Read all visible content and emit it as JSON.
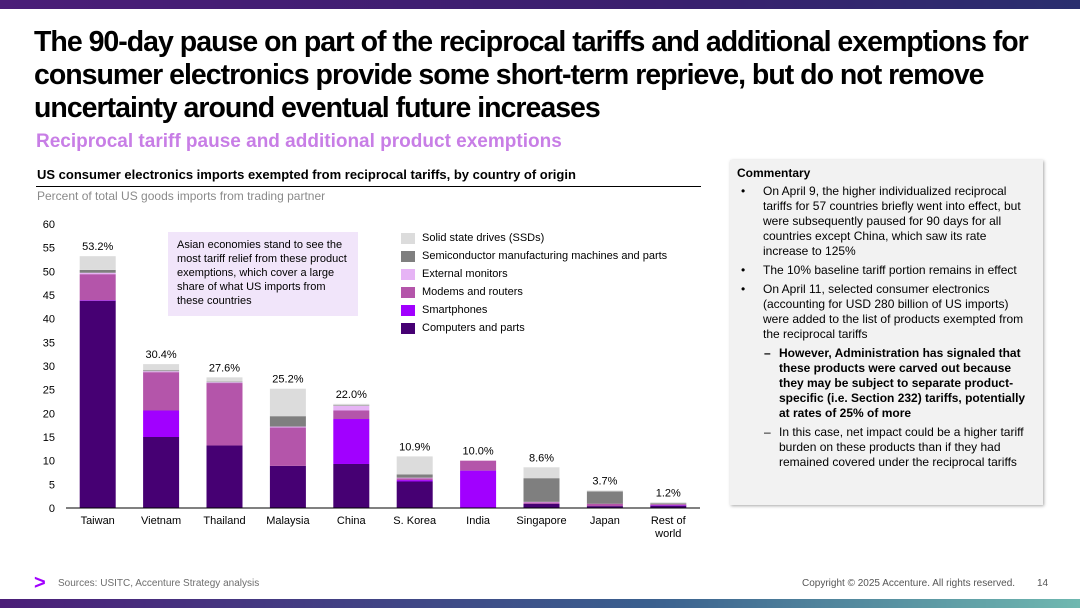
{
  "title": "The 90-day pause on part of the reciprocal tariffs and additional exemptions for consumer electronics provide some short-term reprieve, but  do not remove uncertainty around eventual future increases",
  "subtitle": "Reciprocal tariff pause and additional product exemptions",
  "chart_heading": "US consumer electronics imports exempted from reciprocal tariffs, by country of origin",
  "chart_subheading": "Percent of total US goods imports from trading partner",
  "callout": "Asian economies stand to see the most tariff relief from these product exemptions, which cover a large share of what US imports from these countries",
  "chart_data": {
    "type": "bar",
    "stacked": true,
    "categories": [
      "Taiwan",
      "Vietnam",
      "Thailand",
      "Malaysia",
      "China",
      "S. Korea",
      "India",
      "Singapore",
      "Japan",
      "Rest of world"
    ],
    "totals": [
      "53.2%",
      "30.4%",
      "27.6%",
      "25.2%",
      "22.0%",
      "10.9%",
      "10.0%",
      "8.6%",
      "3.7%",
      "1.2%"
    ],
    "series": [
      {
        "name": "Computers and parts",
        "color": "#460073",
        "values": [
          43.8,
          15.0,
          13.2,
          8.9,
          9.3,
          5.6,
          0.1,
          0.9,
          0.4,
          0.5
        ]
      },
      {
        "name": "Smartphones",
        "color": "#a100ff",
        "values": [
          0.1,
          5.6,
          0.0,
          0.0,
          9.5,
          0.3,
          7.8,
          0.0,
          0.0,
          0.1
        ]
      },
      {
        "name": "Modems and routers",
        "color": "#b455aa",
        "values": [
          5.5,
          8.1,
          13.2,
          8.1,
          1.8,
          0.4,
          2.1,
          0.3,
          0.5,
          0.2
        ]
      },
      {
        "name": "External monitors",
        "color": "#e6b4f5",
        "values": [
          0.3,
          0.2,
          0.2,
          0.2,
          1.0,
          0.1,
          0.0,
          0.1,
          0.0,
          0.0
        ]
      },
      {
        "name": "Semiconductor manufacturing machines and parts",
        "color": "#7f7f7f",
        "values": [
          0.6,
          0.2,
          0.1,
          2.2,
          0.1,
          0.7,
          0.0,
          5.0,
          2.6,
          0.2
        ]
      },
      {
        "name": "Solid state drives (SSDs)",
        "color": "#dcdcdc",
        "values": [
          2.9,
          1.3,
          0.9,
          5.8,
          0.3,
          3.8,
          0.0,
          2.3,
          0.2,
          0.2
        ]
      }
    ],
    "ylim": [
      0,
      60
    ],
    "yticks": [
      "0",
      "5",
      "10",
      "15",
      "20",
      "25",
      "30",
      "35",
      "40",
      "45",
      "50",
      "55",
      "60"
    ],
    "xlabel": "",
    "ylabel": ""
  },
  "commentary": {
    "heading": "Commentary",
    "bullets": [
      {
        "level": 1,
        "bold": false,
        "text": "On April 9, the higher individualized reciprocal tariffs for 57 countries briefly went into effect, but were subsequently paused for 90 days for all countries except China, which saw its rate increase to 125%"
      },
      {
        "level": 1,
        "bold": false,
        "text": "The 10% baseline tariff portion remains in effect"
      },
      {
        "level": 1,
        "bold": false,
        "text": "On April 11, selected consumer electronics (accounting for USD 280 billion of US imports) were added to the list of products exempted from the reciprocal tariffs"
      },
      {
        "level": 2,
        "bold": true,
        "text": "However, Administration has signaled that these products were carved out because they may be subject to separate product-specific (i.e. Section 232) tariffs, potentially at rates of 25% of more"
      },
      {
        "level": 2,
        "bold": false,
        "text": "In this case, net impact could be a higher tariff burden on these products than if they had remained covered under the reciprocal tariffs"
      }
    ]
  },
  "footer": {
    "logo": ">",
    "sources": "Sources: USITC, Accenture Strategy analysis",
    "copyright": "Copyright © 2025 Accenture. All rights reserved.",
    "page": "14"
  }
}
